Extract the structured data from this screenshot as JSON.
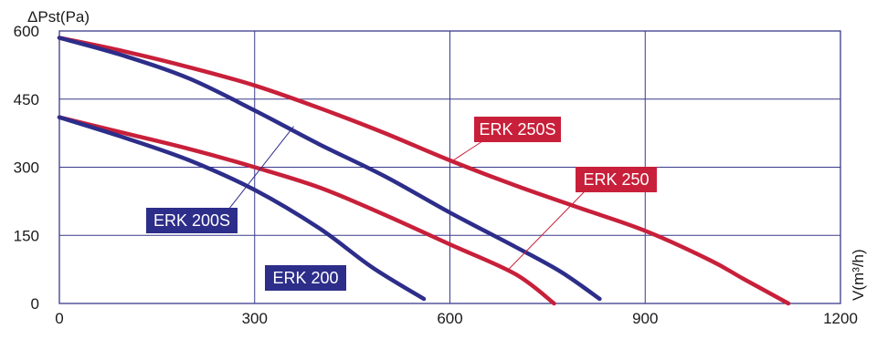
{
  "chart_data": {
    "type": "line",
    "title": "",
    "xlabel": "V(m³/h)",
    "ylabel": "ΔPst(Pa)",
    "xlim": [
      0,
      1200
    ],
    "ylim": [
      0,
      600
    ],
    "x_ticks": [
      "0",
      "300",
      "600",
      "900",
      "1200"
    ],
    "y_ticks": [
      "0",
      "150",
      "300",
      "450",
      "600"
    ],
    "grid": true,
    "legend": "none",
    "series": [
      {
        "name": "ERK 250S",
        "color": "#c8203a",
        "x": [
          0,
          100,
          200,
          300,
          400,
          500,
          600,
          700,
          800,
          900,
          1000,
          1050,
          1120
        ],
        "y": [
          585,
          555,
          520,
          480,
          430,
          375,
          315,
          260,
          210,
          160,
          95,
          55,
          0
        ]
      },
      {
        "name": "ERK 250",
        "color": "#c8203a",
        "x": [
          0,
          100,
          200,
          300,
          400,
          500,
          600,
          700,
          760
        ],
        "y": [
          410,
          375,
          340,
          300,
          255,
          195,
          130,
          65,
          0
        ]
      },
      {
        "name": "ERK 200S",
        "color": "#2d2d8a",
        "x": [
          0,
          100,
          200,
          300,
          400,
          500,
          600,
          700,
          770,
          830
        ],
        "y": [
          585,
          545,
          495,
          425,
          350,
          280,
          200,
          125,
          70,
          10
        ]
      },
      {
        "name": "ERK 200",
        "color": "#2d2d8a",
        "x": [
          0,
          100,
          200,
          300,
          400,
          480,
          560
        ],
        "y": [
          410,
          365,
          315,
          250,
          165,
          80,
          10
        ]
      }
    ],
    "annotations": [
      {
        "text": "ERK 250S",
        "series": "ERK 250S",
        "x": 605,
        "y": 315
      },
      {
        "text": "ERK 250",
        "series": "ERK 250",
        "x": 690,
        "y": 75
      },
      {
        "text": "ERK 200S",
        "series": "ERK 200S",
        "x": 360,
        "y": 390
      },
      {
        "text": "ERK 200",
        "series": "ERK 200",
        "x": 0,
        "y": 0
      }
    ]
  }
}
